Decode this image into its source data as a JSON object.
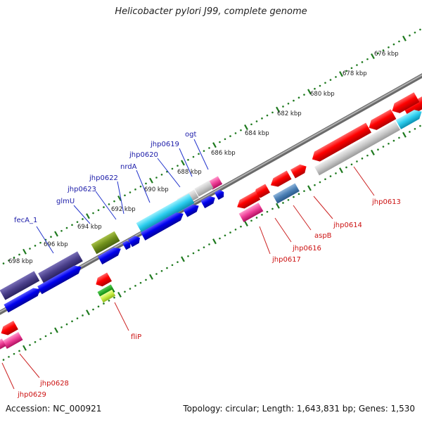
{
  "title": "Helicobacter pylori J99, complete genome",
  "footer": {
    "accession": "Accession: NC_000921",
    "summary": "Topology: circular; Length: 1,643,831 bp; Genes: 1,530"
  },
  "scale_unit": "kbp",
  "scale_labels": [
    "676 kbp",
    "678 kbp",
    "680 kbp",
    "682 kbp",
    "684 kbp",
    "686 kbp",
    "688 kbp",
    "690 kbp",
    "692 kbp",
    "694 kbp",
    "696 kbp",
    "698 kbp"
  ],
  "colors": {
    "tick": "#1f7a1f",
    "backbone": "#8a8a8a",
    "label_top": "#1a1aa8",
    "label_bottom": "#cc1111",
    "leader_top": "#2233cc",
    "leader_bottom": "#cc2222"
  },
  "labels_top": [
    "fecA_1",
    "glmU",
    "jhp0623",
    "jhp0622",
    "nrdA",
    "jhp0620",
    "jhp0619",
    "ogt"
  ],
  "labels_bottom": [
    "jhp0613",
    "jhp0614",
    "aspB",
    "jhp0616",
    "jhp0617",
    "fliP",
    "jhp0628",
    "jhp0629"
  ]
}
